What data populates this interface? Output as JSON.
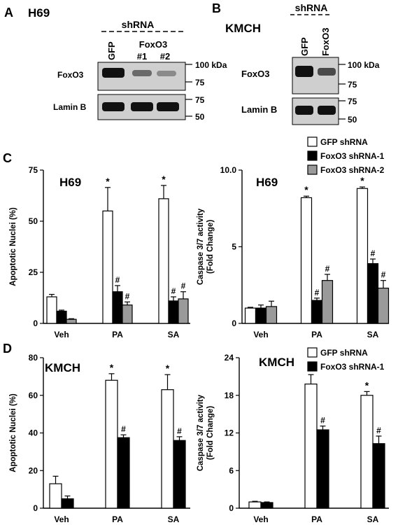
{
  "panels": {
    "A": {
      "letter": "A",
      "cell_line": "H69",
      "shrna_header": "shRNA",
      "lanes": [
        "GFP",
        "FoxO3",
        "#1",
        "#2"
      ],
      "blots": [
        {
          "label": "FoxO3",
          "markers": [
            "100 kDa",
            "75"
          ]
        },
        {
          "label": "Lamin B",
          "markers": [
            "75",
            "50"
          ]
        }
      ]
    },
    "B": {
      "letter": "B",
      "cell_line": "KMCH",
      "shrna_header": "shRNA",
      "lanes": [
        "GFP",
        "FoxO3"
      ],
      "blots": [
        {
          "label": "FoxO3",
          "markers": [
            "100 kDa",
            "75"
          ]
        },
        {
          "label": "Lamin B",
          "markers": [
            "75",
            "50"
          ]
        }
      ]
    },
    "C": {
      "letter": "C"
    },
    "D": {
      "letter": "D"
    }
  },
  "colors": {
    "gfp": "#ffffff",
    "shrna1": "#000000",
    "shrna2": "#9a9a9a"
  },
  "chart_data": [
    {
      "id": "c_left",
      "type": "bar",
      "cell_line": "H69",
      "ylabel": "Apoptotic Nuclei (%)",
      "categories": [
        "Veh",
        "PA",
        "SA"
      ],
      "ylim": [
        0,
        75
      ],
      "yticks": [
        "0",
        "25",
        "50",
        "75"
      ],
      "series": [
        {
          "name": "GFP shRNA",
          "color": "#ffffff",
          "values": [
            13,
            55,
            61
          ],
          "errors": [
            1.2,
            11.5,
            6.5
          ],
          "marks": [
            "",
            "*",
            "*"
          ]
        },
        {
          "name": "FoxO3 shRNA-1",
          "color": "#000000",
          "values": [
            6,
            15.5,
            11
          ],
          "errors": [
            0.5,
            3,
            2
          ],
          "marks": [
            "",
            "#",
            "#"
          ]
        },
        {
          "name": "FoxO3 shRNA-2",
          "color": "#9a9a9a",
          "values": [
            2,
            9,
            12
          ],
          "errors": [
            0.3,
            1.5,
            3.5
          ],
          "marks": [
            "",
            "#",
            "#"
          ]
        }
      ]
    },
    {
      "id": "c_right",
      "type": "bar",
      "cell_line": "H69",
      "ylabel": [
        "Caspase 3/7 activity",
        "(Fold Change)"
      ],
      "categories": [
        "Veh",
        "PA",
        "SA"
      ],
      "ylim": [
        0,
        10
      ],
      "yticks": [
        "0",
        "5",
        "10.0"
      ],
      "series": [
        {
          "name": "GFP shRNA",
          "color": "#ffffff",
          "values": [
            1.0,
            8.2,
            8.8
          ],
          "errors": [
            0.05,
            0.1,
            0.1
          ],
          "marks": [
            "",
            "*",
            "*"
          ]
        },
        {
          "name": "FoxO3 shRNA-1",
          "color": "#000000",
          "values": [
            1.0,
            1.5,
            3.9
          ],
          "errors": [
            0.2,
            0.15,
            0.3
          ],
          "marks": [
            "",
            "#",
            "#"
          ]
        },
        {
          "name": "FoxO3 shRNA-2",
          "color": "#9a9a9a",
          "values": [
            1.1,
            2.8,
            2.3
          ],
          "errors": [
            0.35,
            0.4,
            0.5
          ],
          "marks": [
            "",
            "#",
            "#"
          ]
        }
      ],
      "legend": {
        "position": "top",
        "entries": [
          "GFP shRNA",
          "FoxO3 shRNA-1",
          "FoxO3 shRNA-2"
        ]
      }
    },
    {
      "id": "d_left",
      "type": "bar",
      "cell_line": "KMCH",
      "ylabel": "Apoptotic Nuclei (%)",
      "categories": [
        "Veh",
        "PA",
        "SA"
      ],
      "ylim": [
        0,
        80
      ],
      "yticks": [
        "0",
        "20",
        "40",
        "60",
        "80"
      ],
      "series": [
        {
          "name": "GFP shRNA",
          "color": "#ffffff",
          "values": [
            13,
            68,
            63
          ],
          "errors": [
            4,
            3.5,
            8
          ],
          "marks": [
            "",
            "*",
            "*"
          ]
        },
        {
          "name": "FoxO3 shRNA-1",
          "color": "#000000",
          "values": [
            5,
            37.5,
            36
          ],
          "errors": [
            1.5,
            1.5,
            2
          ],
          "marks": [
            "",
            "#",
            "#"
          ]
        }
      ]
    },
    {
      "id": "d_right",
      "type": "bar",
      "cell_line": "KMCH",
      "ylabel": [
        "Caspase 3/7 activity",
        "(Fold Change)"
      ],
      "categories": [
        "Veh",
        "PA",
        "SA"
      ],
      "ylim": [
        0,
        24
      ],
      "yticks": [
        "0",
        "6",
        "12",
        "18",
        "24"
      ],
      "series": [
        {
          "name": "GFP shRNA",
          "color": "#ffffff",
          "values": [
            1.0,
            19.8,
            18.0
          ],
          "errors": [
            0.1,
            1.5,
            0.6
          ],
          "marks": [
            "",
            "*",
            "*"
          ]
        },
        {
          "name": "FoxO3 shRNA-1",
          "color": "#000000",
          "values": [
            0.9,
            12.5,
            10.3
          ],
          "errors": [
            0.1,
            0.6,
            1.2
          ],
          "marks": [
            "",
            "#",
            "#"
          ]
        }
      ],
      "legend": {
        "position": "top",
        "entries": [
          "GFP shRNA",
          "FoxO3 shRNA-1"
        ]
      }
    }
  ]
}
